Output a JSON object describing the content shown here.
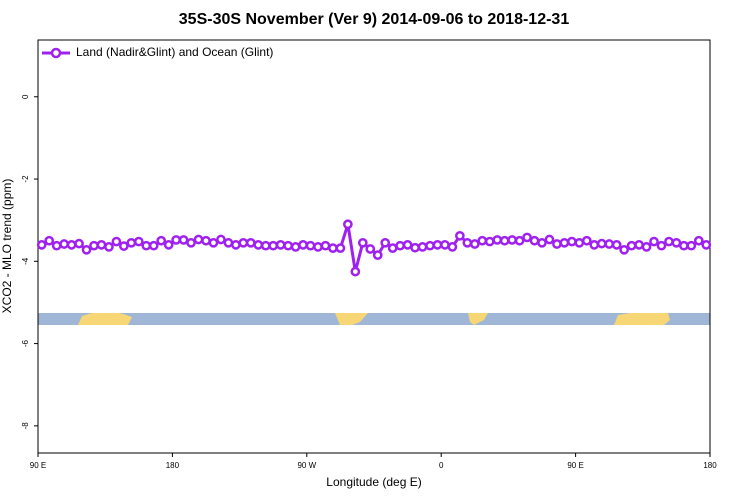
{
  "chart_data": {
    "type": "line",
    "title": "35S-30S November (Ver 9)   2014-09-06 to 2018-12-31",
    "x_label": "Longitude (deg E)",
    "y_label": "XCO2 - MLO trend (ppm)",
    "xlim": [
      90,
      540
    ],
    "xticks": [
      {
        "value": 90,
        "label": "90 E"
      },
      {
        "value": 180,
        "label": "180"
      },
      {
        "value": 270,
        "label": "90 W"
      },
      {
        "value": 360,
        "label": "0"
      },
      {
        "value": 450,
        "label": "90 E"
      },
      {
        "value": 540,
        "label": "180"
      }
    ],
    "ylim": [
      -8.66,
      1.38
    ],
    "yticks": [
      0,
      -2,
      -4,
      -6,
      -8
    ],
    "legend": "top-left",
    "x": [
      92.5,
      97.5,
      102.5,
      107.5,
      112.5,
      117.5,
      122.5,
      127.5,
      132.5,
      137.5,
      142.5,
      147.5,
      152.5,
      157.5,
      162.5,
      167.5,
      172.5,
      177.5,
      182.5,
      187.5,
      192.5,
      197.5,
      202.5,
      207.5,
      212.5,
      217.5,
      222.5,
      227.5,
      232.5,
      237.5,
      242.5,
      247.5,
      252.5,
      257.5,
      262.5,
      267.5,
      272.5,
      277.5,
      282.5,
      287.5,
      292.5,
      297.5,
      302.5,
      307.5,
      312.5,
      317.5,
      322.5,
      327.5,
      332.5,
      337.5,
      342.5,
      347.5,
      352.5,
      357.5,
      362.5,
      367.5,
      372.5,
      377.5,
      382.5,
      387.5,
      392.5,
      397.5,
      402.5,
      407.5,
      412.5,
      417.5,
      422.5,
      427.5,
      432.5,
      437.5,
      442.5,
      447.5,
      452.5,
      457.5,
      462.5,
      467.5,
      472.5,
      477.5,
      482.5,
      487.5,
      492.5,
      497.5,
      502.5,
      507.5,
      512.5,
      517.5,
      522.5,
      527.5,
      532.5,
      537.5
    ],
    "series": [
      {
        "name": "Land (Nadir&Glint) and Ocean (Glint)",
        "color": "#a020f0",
        "values": [
          -3.6,
          -3.5,
          -3.62,
          -3.58,
          -3.6,
          -3.57,
          -3.72,
          -3.62,
          -3.6,
          -3.65,
          -3.52,
          -3.63,
          -3.55,
          -3.52,
          -3.62,
          -3.62,
          -3.5,
          -3.6,
          -3.48,
          -3.48,
          -3.55,
          -3.47,
          -3.5,
          -3.55,
          -3.47,
          -3.55,
          -3.6,
          -3.55,
          -3.55,
          -3.6,
          -3.62,
          -3.62,
          -3.6,
          -3.62,
          -3.65,
          -3.6,
          -3.62,
          -3.65,
          -3.62,
          -3.68,
          -3.68,
          -3.1,
          -4.25,
          -3.55,
          -3.7,
          -3.85,
          -3.55,
          -3.68,
          -3.62,
          -3.6,
          -3.67,
          -3.65,
          -3.62,
          -3.6,
          -3.6,
          -3.65,
          -3.38,
          -3.55,
          -3.58,
          -3.5,
          -3.52,
          -3.48,
          -3.5,
          -3.48,
          -3.5,
          -3.42,
          -3.5,
          -3.55,
          -3.47,
          -3.58,
          -3.55,
          -3.52,
          -3.55,
          -3.5,
          -3.6,
          -3.57,
          -3.58,
          -3.6,
          -3.72,
          -3.62,
          -3.6,
          -3.65,
          -3.52,
          -3.62,
          -3.52,
          -3.55,
          -3.62,
          -3.62,
          -3.5,
          -3.6
        ]
      }
    ]
  }
}
